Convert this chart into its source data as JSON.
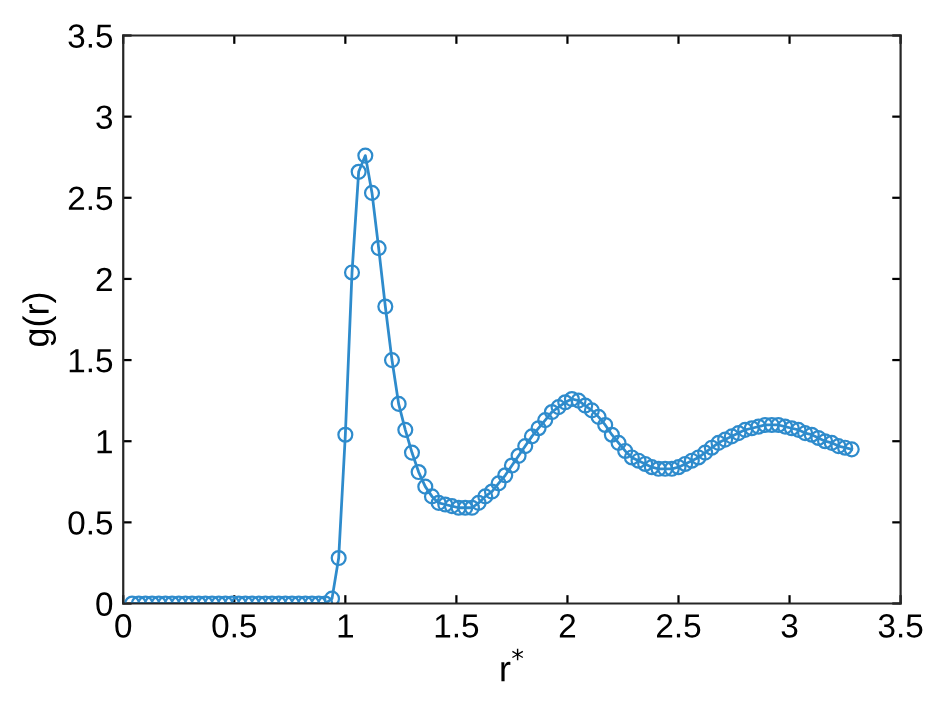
{
  "chart_data": {
    "type": "line",
    "xlabel": "r$^{*}$",
    "ylabel": "g(r)",
    "x": [
      0.04,
      0.07,
      0.1,
      0.13,
      0.16,
      0.19,
      0.22,
      0.25,
      0.28,
      0.31,
      0.34,
      0.37,
      0.4,
      0.43,
      0.46,
      0.49,
      0.52,
      0.55,
      0.58,
      0.61,
      0.64,
      0.67,
      0.7,
      0.73,
      0.76,
      0.79,
      0.82,
      0.85,
      0.88,
      0.91,
      0.94,
      0.97,
      1.0,
      1.03,
      1.06,
      1.09,
      1.12,
      1.15,
      1.18,
      1.21,
      1.24,
      1.27,
      1.3,
      1.33,
      1.36,
      1.39,
      1.42,
      1.45,
      1.48,
      1.51,
      1.54,
      1.57,
      1.6,
      1.63,
      1.66,
      1.69,
      1.72,
      1.75,
      1.78,
      1.81,
      1.84,
      1.87,
      1.9,
      1.93,
      1.96,
      1.99,
      2.02,
      2.05,
      2.08,
      2.11,
      2.14,
      2.17,
      2.2,
      2.23,
      2.26,
      2.29,
      2.32,
      2.35,
      2.38,
      2.41,
      2.44,
      2.47,
      2.5,
      2.53,
      2.56,
      2.59,
      2.62,
      2.65,
      2.68,
      2.71,
      2.74,
      2.77,
      2.8,
      2.83,
      2.86,
      2.89,
      2.92,
      2.95,
      2.98,
      3.01,
      3.04,
      3.07,
      3.1,
      3.13,
      3.16,
      3.19,
      3.22,
      3.25,
      3.28
    ],
    "series": [
      {
        "color": "#2e8bcc",
        "values": [
          0,
          0,
          0,
          0,
          0,
          0,
          0,
          0,
          0,
          0,
          0,
          0,
          0,
          0,
          0,
          0,
          0,
          0,
          0,
          0,
          0,
          0,
          0,
          0,
          0,
          0,
          0,
          0,
          0,
          0,
          0.03,
          0.28,
          1.04,
          2.04,
          2.66,
          2.76,
          2.53,
          2.19,
          1.83,
          1.5,
          1.23,
          1.07,
          0.93,
          0.81,
          0.72,
          0.66,
          0.62,
          0.61,
          0.6,
          0.59,
          0.59,
          0.59,
          0.62,
          0.66,
          0.69,
          0.74,
          0.79,
          0.85,
          0.91,
          0.97,
          1.03,
          1.08,
          1.13,
          1.18,
          1.21,
          1.24,
          1.26,
          1.25,
          1.22,
          1.19,
          1.15,
          1.1,
          1.04,
          0.99,
          0.94,
          0.9,
          0.88,
          0.86,
          0.84,
          0.83,
          0.83,
          0.83,
          0.84,
          0.86,
          0.88,
          0.9,
          0.93,
          0.96,
          0.99,
          1.01,
          1.03,
          1.05,
          1.07,
          1.08,
          1.09,
          1.1,
          1.1,
          1.1,
          1.09,
          1.08,
          1.07,
          1.05,
          1.04,
          1.02,
          1.0,
          0.99,
          0.97,
          0.96,
          0.95
        ]
      }
    ],
    "xlim": [
      0,
      3.5
    ],
    "ylim": [
      0,
      3.5
    ],
    "xticks": [
      0,
      0.5,
      1,
      1.5,
      2,
      2.5,
      3,
      3.5
    ],
    "yticks": [
      0,
      0.5,
      1,
      1.5,
      2,
      2.5,
      3,
      3.5
    ],
    "marker": "circle",
    "line_style": "solid",
    "grid": false,
    "legend": false
  }
}
